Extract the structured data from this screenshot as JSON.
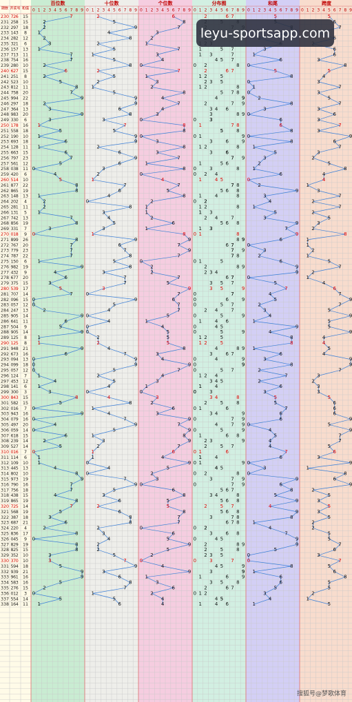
{
  "header": {
    "issue": "期数",
    "number": "开奖号",
    "sum": "和值",
    "panels": [
      "百位数",
      "十位数",
      "个位数",
      "分布图",
      "和尾",
      "跨度"
    ],
    "scale": [
      0,
      1,
      2,
      3,
      4,
      5,
      6,
      7,
      8,
      9
    ]
  },
  "watermark": "leyu-sportsapp.com",
  "footer": "搜狐号@梦歌体育",
  "rows": [
    {
      "i": "230",
      "d": [
        7,
        2,
        6
      ],
      "s": 15,
      "t": 5,
      "k": 5
    },
    {
      "i": "231",
      "d": [
        2,
        5,
        8
      ],
      "s": 15,
      "t": 5,
      "k": 6
    },
    {
      "i": "232",
      "d": [
        2,
        9,
        7
      ],
      "s": 18,
      "t": 8,
      "k": 7
    },
    {
      "i": "233",
      "d": [
        1,
        4,
        3
      ],
      "s": 8,
      "t": 8,
      "k": 3
    },
    {
      "i": "234",
      "d": [
        2,
        8,
        2
      ],
      "s": 12,
      "t": 2,
      "k": 6
    },
    {
      "i": "235",
      "d": [
        3,
        2,
        1
      ],
      "s": 6,
      "t": 6,
      "k": 2
    },
    {
      "i": "236",
      "d": [
        1,
        5,
        7
      ],
      "s": 13,
      "t": 3,
      "k": 6
    },
    {
      "i": "237",
      "d": [
        7,
        1,
        3
      ],
      "s": 11,
      "t": 1,
      "k": 6
    },
    {
      "i": "238",
      "d": [
        7,
        5,
        4
      ],
      "s": 16,
      "t": 6,
      "k": 3
    },
    {
      "i": "239",
      "d": [
        2,
        8,
        0
      ],
      "s": 10,
      "t": 0,
      "k": 8
    },
    {
      "i": "240",
      "d": [
        6,
        2,
        7
      ],
      "s": 15,
      "t": 5,
      "k": 5
    },
    {
      "i": "241",
      "d": [
        2,
        5,
        1
      ],
      "s": 8,
      "t": 8,
      "k": 4
    },
    {
      "i": "242",
      "d": [
        5,
        2,
        3
      ],
      "s": 10,
      "t": 0,
      "k": 3
    },
    {
      "i": "243",
      "d": [
        8,
        1,
        2
      ],
      "s": 11,
      "t": 1,
      "k": 7
    },
    {
      "i": "244",
      "d": [
        7,
        5,
        8
      ],
      "s": 20,
      "t": 0,
      "k": 3
    },
    {
      "i": "245",
      "d": [
        9,
        9,
        4
      ],
      "s": 22,
      "t": 2,
      "k": 5
    },
    {
      "i": "246",
      "d": [
        2,
        9,
        7
      ],
      "s": 18,
      "t": 8,
      "k": 7
    },
    {
      "i": "247",
      "d": [
        3,
        6,
        4
      ],
      "s": 13,
      "t": 3,
      "k": 3
    },
    {
      "i": "248",
      "d": [
        9,
        8,
        3
      ],
      "s": 20,
      "t": 0,
      "k": 6
    },
    {
      "i": "249",
      "d": [
        3,
        3,
        0
      ],
      "s": 6,
      "t": 6,
      "k": 3
    },
    {
      "i": "250",
      "d": [
        1,
        7,
        8
      ],
      "s": 16,
      "t": 6,
      "k": 7
    },
    {
      "i": "251",
      "d": [
        5,
        5,
        8
      ],
      "s": 18,
      "t": 8,
      "k": 3
    },
    {
      "i": "252",
      "d": [
        1,
        9,
        0
      ],
      "s": 10,
      "t": 0,
      "k": 9
    },
    {
      "i": "253",
      "d": [
        6,
        9,
        3
      ],
      "s": 18,
      "t": 8,
      "k": 6
    },
    {
      "i": "254",
      "d": [
        1,
        2,
        8
      ],
      "s": 11,
      "t": 1,
      "k": 7
    },
    {
      "i": "255",
      "d": [
        6,
        6,
        3
      ],
      "s": 15,
      "t": 5,
      "k": 3
    },
    {
      "i": "256",
      "d": [
        7,
        9,
        7
      ],
      "s": 23,
      "t": 3,
      "k": 2
    },
    {
      "i": "257",
      "d": [
        5,
        6,
        1
      ],
      "s": 12,
      "t": 2,
      "k": 5
    },
    {
      "i": "258",
      "d": [
        0,
        3,
        8
      ],
      "s": 11,
      "t": 1,
      "k": 8
    },
    {
      "i": "259",
      "d": [
        4,
        2,
        0
      ],
      "s": 6,
      "t": 6,
      "k": 4
    },
    {
      "i": "260",
      "d": [
        5,
        1,
        4
      ],
      "s": 10,
      "t": 0,
      "k": 4
    },
    {
      "i": "261",
      "d": [
        8,
        7,
        7
      ],
      "s": 22,
      "t": 2,
      "k": 1
    },
    {
      "i": "262",
      "d": [
        8,
        6,
        5
      ],
      "s": 19,
      "t": 9,
      "k": 3
    },
    {
      "i": "263",
      "d": [
        1,
        4,
        8
      ],
      "s": 13,
      "t": 3,
      "k": 7
    },
    {
      "i": "264",
      "d": [
        2,
        0,
        2
      ],
      "s": 4,
      "t": 4,
      "k": 2
    },
    {
      "i": "265",
      "d": [
        2,
        8,
        1
      ],
      "s": 11,
      "t": 1,
      "k": 7
    },
    {
      "i": "266",
      "d": [
        1,
        3,
        1
      ],
      "s": 5,
      "t": 5,
      "k": 2
    },
    {
      "i": "267",
      "d": [
        7,
        4,
        2
      ],
      "s": 13,
      "t": 3,
      "k": 5
    },
    {
      "i": "268",
      "d": [
        8,
        5,
        6
      ],
      "s": 19,
      "t": 9,
      "k": 3
    },
    {
      "i": "269",
      "d": [
        3,
        3,
        1
      ],
      "s": 7,
      "t": 7,
      "k": 2
    },
    {
      "i": "270",
      "d": [
        0,
        1,
        8
      ],
      "s": 9,
      "t": 9,
      "k": 8
    },
    {
      "i": "271",
      "d": [
        8,
        9,
        9
      ],
      "s": 26,
      "t": 6,
      "k": 1
    },
    {
      "i": "272",
      "d": [
        7,
        6,
        7
      ],
      "s": 20,
      "t": 0,
      "k": 1
    },
    {
      "i": "273",
      "d": [
        7,
        7,
        9
      ],
      "s": 23,
      "t": 3,
      "k": 2
    },
    {
      "i": "274",
      "d": [
        7,
        8,
        7
      ],
      "s": 22,
      "t": 2,
      "k": 1
    },
    {
      "i": "275",
      "d": [
        1,
        5,
        0
      ],
      "s": 6,
      "t": 6,
      "k": 5
    },
    {
      "i": "276",
      "d": [
        9,
        8,
        2
      ],
      "s": 19,
      "t": 9,
      "k": 7
    },
    {
      "i": "277",
      "d": [
        4,
        3,
        2
      ],
      "s": 9,
      "t": 9,
      "k": 2
    },
    {
      "i": "278",
      "d": [
        6,
        7,
        7
      ],
      "s": 20,
      "t": 0,
      "k": 1
    },
    {
      "i": "279",
      "d": [
        3,
        7,
        5
      ],
      "s": 15,
      "t": 5,
      "k": 4
    },
    {
      "i": "280",
      "d": [
        5,
        3,
        9
      ],
      "s": 17,
      "t": 7,
      "k": 6
    },
    {
      "i": "281",
      "d": [
        7,
        0,
        7
      ],
      "s": 14,
      "t": 4,
      "k": 7
    },
    {
      "i": "282",
      "d": [
        0,
        9,
        6
      ],
      "s": 15,
      "t": 5,
      "k": 9
    },
    {
      "i": "283",
      "d": [
        0,
        5,
        7
      ],
      "s": 12,
      "t": 2,
      "k": 7
    },
    {
      "i": "284",
      "d": [
        2,
        4,
        7
      ],
      "s": 13,
      "t": 3,
      "k": 5
    },
    {
      "i": "285",
      "d": [
        9,
        0,
        5
      ],
      "s": 14,
      "t": 4,
      "k": 9
    },
    {
      "i": "286",
      "d": [
        6,
        4,
        1
      ],
      "s": 11,
      "t": 1,
      "k": 5
    },
    {
      "i": "287",
      "d": [
        5,
        0,
        4
      ],
      "s": 9,
      "t": 9,
      "k": 5
    },
    {
      "i": "288",
      "d": [
        9,
        0,
        5
      ],
      "s": 14,
      "t": 4,
      "k": 9
    },
    {
      "i": "289",
      "d": [
        1,
        2,
        5
      ],
      "s": 8,
      "t": 8,
      "k": 4
    },
    {
      "i": "290",
      "d": [
        1,
        2,
        5
      ],
      "s": 8,
      "t": 8,
      "k": 4
    },
    {
      "i": "291",
      "d": [
        9,
        4,
        8
      ],
      "s": 21,
      "t": 1,
      "k": 5
    },
    {
      "i": "292",
      "d": [
        6,
        7,
        3
      ],
      "s": 16,
      "t": 6,
      "k": 4
    },
    {
      "i": "293",
      "d": [
        0,
        9,
        4
      ],
      "s": 13,
      "t": 3,
      "k": 9
    },
    {
      "i": "294",
      "d": [
        0,
        9,
        9
      ],
      "s": 18,
      "t": 8,
      "k": 9
    },
    {
      "i": "295",
      "d": [
        0,
        5,
        7
      ],
      "s": 12,
      "t": 2,
      "k": 7
    },
    {
      "i": "296",
      "d": [
        1,
        2,
        4
      ],
      "s": 7,
      "t": 7,
      "k": 3
    },
    {
      "i": "297",
      "d": [
        4,
        5,
        3
      ],
      "s": 12,
      "t": 2,
      "k": 2
    },
    {
      "i": "298",
      "d": [
        1,
        4,
        1
      ],
      "s": 6,
      "t": 6,
      "k": 3
    },
    {
      "i": "299",
      "d": [
        3,
        0,
        0
      ],
      "s": 3,
      "t": 3,
      "k": 3
    },
    {
      "i": "300",
      "d": [
        8,
        4,
        3
      ],
      "s": 15,
      "t": 5,
      "k": 5
    },
    {
      "i": "301",
      "d": [
        5,
        8,
        2
      ],
      "s": 15,
      "t": 5,
      "k": 6
    },
    {
      "i": "302",
      "d": [
        0,
        1,
        6
      ],
      "s": 7,
      "t": 7,
      "k": 6
    },
    {
      "i": "303",
      "d": [
        9,
        4,
        3
      ],
      "s": 16,
      "t": 6,
      "k": 6
    },
    {
      "i": "304",
      "d": [
        0,
        7,
        9
      ],
      "s": 16,
      "t": 6,
      "k": 9
    },
    {
      "i": "305",
      "d": [
        4,
        9,
        7
      ],
      "s": 20,
      "t": 0,
      "k": 5
    },
    {
      "i": "306",
      "d": [
        0,
        5,
        9
      ],
      "s": 14,
      "t": 4,
      "k": 9
    },
    {
      "i": "307",
      "d": [
        6,
        1,
        8
      ],
      "s": 15,
      "t": 5,
      "k": 7
    },
    {
      "i": "308",
      "d": [
        2,
        3,
        9
      ],
      "s": 14,
      "t": 4,
      "k": 7
    },
    {
      "i": "309",
      "d": [
        5,
        2,
        7
      ],
      "s": 14,
      "t": 4,
      "k": 5
    },
    {
      "i": "310",
      "d": [
        0,
        1,
        6
      ],
      "s": 7,
      "t": 7,
      "k": 6
    },
    {
      "i": "311",
      "d": [
        1,
        1,
        4
      ],
      "s": 6,
      "t": 6,
      "k": 3
    },
    {
      "i": "312",
      "d": [
        1,
        0,
        9
      ],
      "s": 10,
      "t": 0,
      "k": 9
    },
    {
      "i": "313",
      "d": [
        4,
        4,
        5
      ],
      "s": 13,
      "t": 3,
      "k": 1
    },
    {
      "i": "314",
      "d": [
        8,
        0,
        2
      ],
      "s": 10,
      "t": 0,
      "k": 8
    },
    {
      "i": "315",
      "d": [
        9,
        7,
        3
      ],
      "s": 19,
      "t": 9,
      "k": 6
    },
    {
      "i": "316",
      "d": [
        7,
        9,
        0
      ],
      "s": 16,
      "t": 6,
      "k": 9
    },
    {
      "i": "317",
      "d": [
        7,
        5,
        6
      ],
      "s": 18,
      "t": 8,
      "k": 2
    },
    {
      "i": "318",
      "d": [
        4,
        3,
        8
      ],
      "s": 15,
      "t": 5,
      "k": 5
    },
    {
      "i": "319",
      "d": [
        8,
        6,
        5
      ],
      "s": 19,
      "t": 9,
      "k": 3
    },
    {
      "i": "320",
      "d": [
        7,
        2,
        5
      ],
      "s": 14,
      "t": 4,
      "k": 5
    },
    {
      "i": "321",
      "d": [
        5,
        6,
        8
      ],
      "s": 19,
      "t": 9,
      "k": 3
    },
    {
      "i": "322",
      "d": [
        3,
        8,
        7
      ],
      "s": 18,
      "t": 8,
      "k": 5
    },
    {
      "i": "323",
      "d": [
        6,
        8,
        7
      ],
      "s": 21,
      "t": 1,
      "k": 2
    },
    {
      "i": "324",
      "d": [
        2,
        2,
        0
      ],
      "s": 4,
      "t": 4,
      "k": 2
    },
    {
      "i": "325",
      "d": [
        8,
        3,
        6
      ],
      "s": 17,
      "t": 7,
      "k": 5
    },
    {
      "i": "326",
      "d": [
        0,
        4,
        5
      ],
      "s": 9,
      "t": 9,
      "k": 5
    },
    {
      "i": "327",
      "d": [
        8,
        2,
        9
      ],
      "s": 19,
      "t": 9,
      "k": 7
    },
    {
      "i": "328",
      "d": [
        8,
        2,
        5
      ],
      "s": 15,
      "t": 5,
      "k": 6
    },
    {
      "i": "329",
      "d": [
        3,
        5,
        2
      ],
      "s": 10,
      "t": 0,
      "k": 3
    },
    {
      "i": "330",
      "d": [
        3,
        7,
        0
      ],
      "s": 10,
      "t": 0,
      "k": 7
    },
    {
      "i": "331",
      "d": [
        5,
        9,
        4
      ],
      "s": 18,
      "t": 8,
      "k": 5
    },
    {
      "i": "332",
      "d": [
        9,
        3,
        9
      ],
      "s": 21,
      "t": 1,
      "k": 6
    },
    {
      "i": "333",
      "d": [
        9,
        6,
        1
      ],
      "s": 16,
      "t": 6,
      "k": 8
    },
    {
      "i": "334",
      "d": [
        5,
        8,
        3
      ],
      "s": 16,
      "t": 6,
      "k": 5
    },
    {
      "i": "335",
      "d": [
        2,
        7,
        6
      ],
      "s": 15,
      "t": 5,
      "k": 5
    },
    {
      "i": "336",
      "d": [
        0,
        1,
        2
      ],
      "s": 3,
      "t": 3,
      "k": 2
    },
    {
      "i": "337",
      "d": [
        5,
        5,
        4
      ],
      "s": 14,
      "t": 4,
      "k": 1
    },
    {
      "i": "338",
      "d": [
        1,
        6,
        4
      ],
      "s": 11,
      "t": 1,
      "k": 5
    }
  ]
}
